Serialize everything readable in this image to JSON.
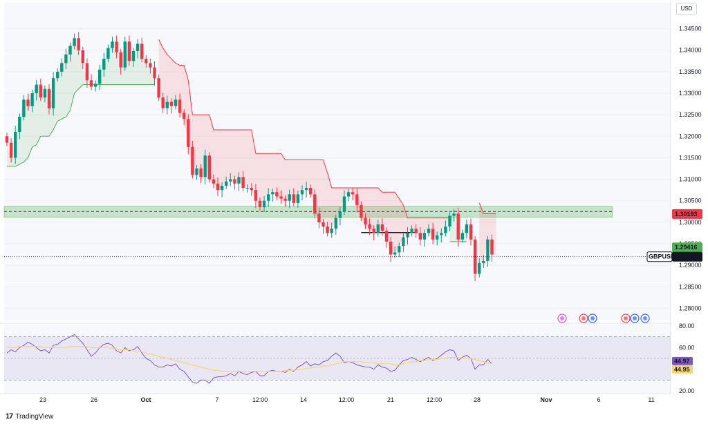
{
  "header": {
    "currency": "USD"
  },
  "footer": {
    "brand": "TradingView"
  },
  "chart_data": {
    "type": "candlestick",
    "symbol": "GBPUSD",
    "price_axis": {
      "ticks": [
        "1.34500",
        "1.34000",
        "1.33500",
        "1.33000",
        "1.32500",
        "1.32000",
        "1.31500",
        "1.31000",
        "1.30500",
        "1.30000",
        "1.29500",
        "1.29000",
        "1.28500",
        "1.28000"
      ],
      "range": [
        1.2775,
        1.3475
      ]
    },
    "time_axis": {
      "labels": [
        "23",
        "26",
        "Oct",
        "7",
        "12:00",
        "14",
        "12:00",
        "21",
        "12:00",
        "28",
        "Nov",
        "6",
        "11"
      ]
    },
    "price_labels": {
      "resistance": "1.30193",
      "support": "1.29416",
      "last": "1.29199",
      "symbol": "GBPUSD"
    },
    "horizontal_zone": {
      "low": 1.3012,
      "high": 1.3037,
      "dashed_line": 1.3025,
      "color": "#4caf50"
    },
    "closes": [
      1.3185,
      1.315,
      1.321,
      1.3245,
      1.3285,
      1.327,
      1.33,
      1.332,
      1.329,
      1.331,
      1.3265,
      1.3335,
      1.335,
      1.337,
      1.339,
      1.341,
      1.3428,
      1.34,
      1.337,
      1.333,
      1.3315,
      1.3322,
      1.3355,
      1.338,
      1.3405,
      1.342,
      1.3395,
      1.336,
      1.342,
      1.3375,
      1.3398,
      1.3415,
      1.338,
      1.337,
      1.336,
      1.3335,
      1.329,
      1.3265,
      1.328,
      1.327,
      1.3285,
      1.3255,
      1.324,
      1.3175,
      1.311,
      1.3125,
      1.3105,
      1.3155,
      1.31,
      1.309,
      1.3075,
      1.3085,
      1.3095,
      1.31,
      1.309,
      1.3105,
      1.308,
      1.308,
      1.3075,
      1.305,
      1.3035,
      1.305,
      1.3065,
      1.307,
      1.306,
      1.3055,
      1.305,
      1.3065,
      1.3045,
      1.3065,
      1.3075,
      1.308,
      1.3065,
      1.302,
      1.3,
      1.299,
      1.2975,
      1.2985,
      1.301,
      1.3025,
      1.306,
      1.307,
      1.3065,
      1.304,
      1.301,
      1.2995,
      1.2985,
      1.2975,
      1.2995,
      1.298,
      1.2955,
      1.2925,
      1.293,
      1.2945,
      1.2965,
      1.2975,
      1.2985,
      1.2975,
      1.296,
      1.2975,
      1.2985,
      1.296,
      1.297,
      1.2975,
      1.299,
      1.3015,
      1.302,
      1.296,
      1.2975,
      1.2995,
      1.296,
      1.288,
      1.2905,
      1.291,
      1.296,
      1.2925
    ],
    "supertrend": {
      "up": {
        "color": "#4caf50",
        "segments": [
          {
            "start": 0,
            "values": [
              1.313,
              1.313,
              1.313,
              1.3135,
              1.314,
              1.315,
              1.3175,
              1.318,
              1.32,
              1.32,
              1.32,
              1.3215,
              1.3235,
              1.324,
              1.3245,
              1.326,
              1.33,
              1.331,
              1.332,
              1.332,
              1.332,
              1.332,
              1.332,
              1.332,
              1.332,
              1.332,
              1.332,
              1.332,
              1.332,
              1.332,
              1.332,
              1.332,
              1.332,
              1.332,
              1.332,
              1.332
            ]
          },
          {
            "start": 105,
            "values": [
              1.2955,
              1.2955,
              1.2955,
              1.2955,
              1.2955
            ]
          }
        ]
      },
      "down": {
        "color": "#f23645",
        "segments": [
          {
            "start": 36,
            "values": [
              1.3425,
              1.3405,
              1.339,
              1.338,
              1.337,
              1.3365,
              1.3365,
              1.333,
              1.325,
              1.325,
              1.325,
              1.325,
              1.325,
              1.3215,
              1.3215,
              1.3215,
              1.3215,
              1.3215,
              1.3215,
              1.3215,
              1.3215,
              1.3215,
              1.3215,
              1.316,
              1.316,
              1.316,
              1.316,
              1.316,
              1.316,
              1.316,
              1.3145,
              1.3145,
              1.3145,
              1.3145,
              1.3145,
              1.3145,
              1.3145,
              1.3145,
              1.3145,
              1.3145,
              1.3115,
              1.308,
              1.308,
              1.308,
              1.308,
              1.308,
              1.308,
              1.308,
              1.308,
              1.308,
              1.308,
              1.308,
              1.308,
              1.307,
              1.307,
              1.307,
              1.307,
              1.3055,
              1.304,
              1.301,
              1.301,
              1.301,
              1.301,
              1.301,
              1.301,
              1.301,
              1.301,
              1.301,
              1.301,
              1.301
            ]
          },
          {
            "start": 112,
            "values": [
              1.3045,
              1.302,
              1.302,
              1.302,
              1.302
            ]
          }
        ]
      }
    },
    "rsi": {
      "ticks": [
        "80.00",
        "60.00",
        "20.00"
      ],
      "range": [
        20,
        80
      ],
      "bands": [
        70,
        30
      ],
      "midline": 50,
      "value": "44.97",
      "ma_value": "44.95",
      "line_color": "#7e57c2",
      "ma_color": "#f7d66b",
      "values": [
        55,
        58,
        56,
        60,
        62,
        65,
        63,
        60,
        57,
        58,
        55,
        62,
        63,
        66,
        68,
        70,
        72,
        68,
        64,
        58,
        52,
        55,
        60,
        63,
        64,
        62,
        57,
        55,
        60,
        57,
        58,
        61,
        55,
        50,
        48,
        44,
        42,
        42,
        44,
        43,
        45,
        40,
        38,
        33,
        28,
        27,
        30,
        30,
        27,
        32,
        33,
        33,
        34,
        36,
        34,
        38,
        36,
        35,
        37,
        38,
        34,
        34,
        38,
        39,
        38,
        38,
        37,
        40,
        38,
        42,
        44,
        47,
        43,
        45,
        44,
        47,
        48,
        52,
        55,
        52,
        46,
        47,
        46,
        44,
        43,
        42,
        42,
        40,
        44,
        42,
        41,
        38,
        39,
        44,
        48,
        49,
        51,
        49,
        47,
        49,
        51,
        48,
        50,
        53,
        56,
        58,
        57,
        48,
        51,
        53,
        50,
        40,
        44,
        44,
        49,
        45
      ],
      "ma": [
        60,
        60,
        60,
        61,
        61,
        61,
        61,
        61,
        61,
        60,
        60,
        60,
        60,
        60,
        60,
        61,
        61,
        61,
        61,
        61,
        60,
        60,
        60,
        60,
        60,
        59,
        59,
        58,
        58,
        58,
        57,
        57,
        56,
        55,
        54,
        53,
        52,
        51,
        50,
        49,
        48,
        47,
        46,
        45,
        44,
        43,
        42,
        41,
        40,
        39,
        39,
        38,
        38,
        38,
        38,
        38,
        38,
        38,
        38,
        38,
        38,
        38,
        38,
        38,
        38,
        38,
        39,
        39,
        39,
        40,
        40,
        41,
        41,
        42,
        42,
        43,
        43,
        44,
        45,
        46,
        47,
        47,
        47,
        47,
        47,
        46,
        46,
        46,
        45,
        45,
        45,
        45,
        44,
        44,
        45,
        46,
        47,
        47,
        48,
        48,
        49,
        49,
        49,
        50,
        50,
        51,
        51,
        51,
        50,
        50,
        50,
        49,
        48,
        47,
        46,
        45
      ]
    },
    "events": {
      "icons": [
        "lightning-icon",
        "flag-uk-icon",
        "flag-us-icon",
        "flag-uk-icon",
        "flag-us-icon",
        "flag-us-icon"
      ]
    },
    "colors": {
      "up": "#089981",
      "down": "#f23645",
      "grid": "#f0f3fa"
    }
  }
}
